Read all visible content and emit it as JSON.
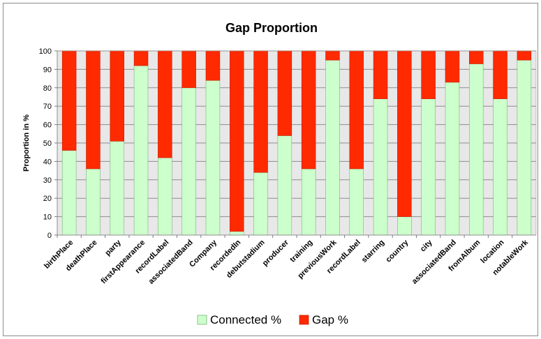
{
  "chart_data": {
    "type": "bar",
    "stacked": true,
    "title": "Gap Proportion",
    "xlabel": "",
    "ylabel": "Proportion in %",
    "ylim": [
      0,
      100
    ],
    "yticks": [
      0,
      10,
      20,
      30,
      40,
      50,
      60,
      70,
      80,
      90,
      100
    ],
    "grid": true,
    "legend_position": "bottom",
    "categories": [
      "birthPlace",
      "deathPlace",
      "party",
      "firstAppearance",
      "recordLabel",
      "associatedBand",
      "Company",
      "recordedIn",
      "debutstadium",
      "producer",
      "training",
      "previousWork",
      "recordLabel",
      "starring",
      "country",
      "city",
      "associatedBand",
      "fromAlbum",
      "location",
      "notableWork"
    ],
    "series": [
      {
        "name": "Connected %",
        "color": "#ccffcc",
        "values": [
          46,
          36,
          51,
          92,
          42,
          80,
          84,
          2,
          34,
          54,
          36,
          95,
          36,
          74,
          10,
          74,
          83,
          93,
          74,
          95
        ]
      },
      {
        "name": "Gap %",
        "color": "#ff2a00",
        "values": [
          54,
          64,
          49,
          8,
          58,
          20,
          16,
          98,
          66,
          46,
          64,
          5,
          64,
          26,
          90,
          26,
          17,
          7,
          26,
          5
        ]
      }
    ]
  }
}
